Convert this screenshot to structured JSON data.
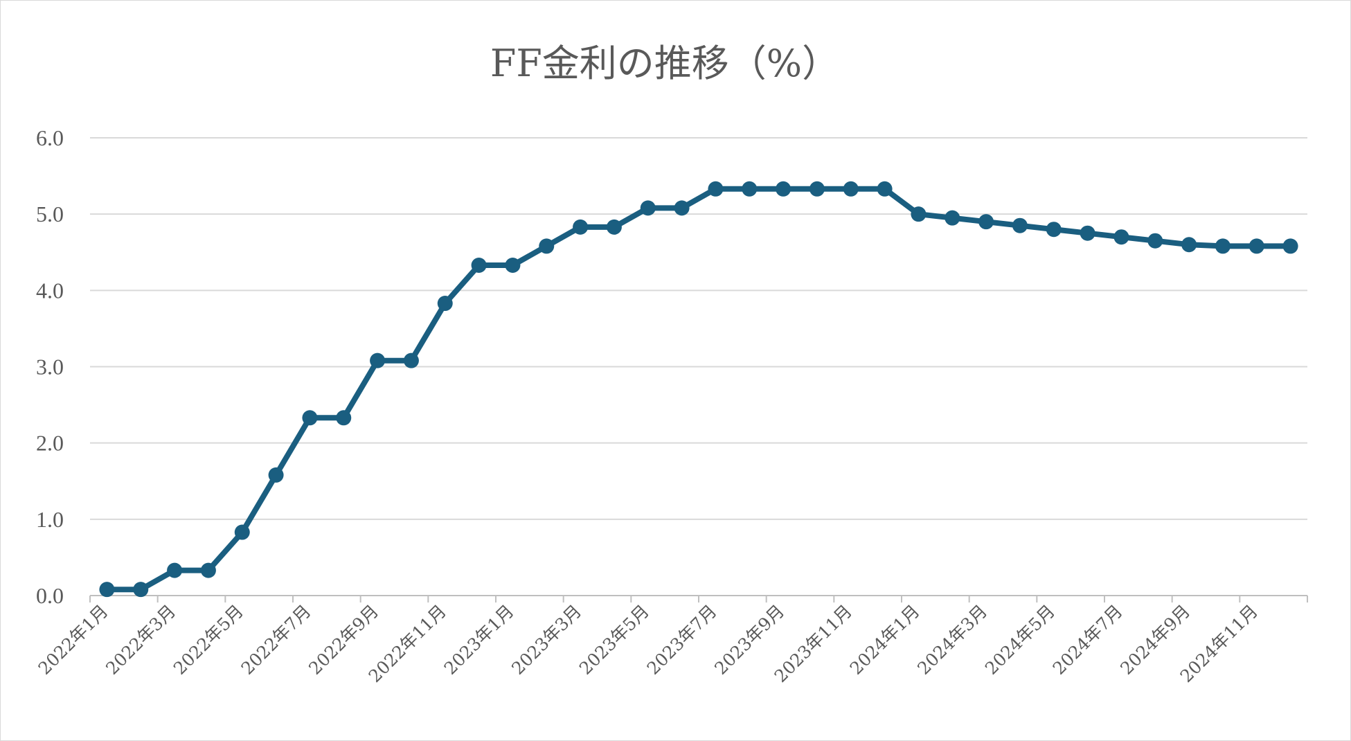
{
  "chart_data": {
    "type": "line",
    "title": "FF金利の推移（%）",
    "xlabel": "",
    "ylabel": "",
    "ylim": [
      0,
      6
    ],
    "yticks": [
      "0.0",
      "1.0",
      "2.0",
      "3.0",
      "4.0",
      "5.0",
      "6.0"
    ],
    "grid": true,
    "legend": "none",
    "color": "#1a5e80",
    "x_labels": [
      "2022年1月",
      "2022年3月",
      "2022年5月",
      "2022年7月",
      "2022年9月",
      "2022年11月",
      "2023年1月",
      "2023年3月",
      "2023年5月",
      "2023年7月",
      "2023年9月",
      "2023年11月",
      "2024年1月",
      "2024年3月",
      "2024年5月",
      "2024年7月",
      "2024年9月",
      "2024年11月"
    ],
    "x": [
      "2022-01",
      "2022-02",
      "2022-03",
      "2022-04",
      "2022-05",
      "2022-06",
      "2022-07",
      "2022-08",
      "2022-09",
      "2022-10",
      "2022-11",
      "2022-12",
      "2023-01",
      "2023-02",
      "2023-03",
      "2023-04",
      "2023-05",
      "2023-06",
      "2023-07",
      "2023-08",
      "2023-09",
      "2023-10",
      "2023-11",
      "2023-12",
      "2024-01",
      "2024-02",
      "2024-03",
      "2024-04",
      "2024-05",
      "2024-06",
      "2024-07",
      "2024-08",
      "2024-09",
      "2024-10",
      "2024-11",
      "2024-12"
    ],
    "values": [
      0.08,
      0.08,
      0.33,
      0.33,
      0.83,
      1.58,
      2.33,
      2.33,
      3.08,
      3.08,
      3.83,
      4.33,
      4.33,
      4.58,
      4.83,
      4.83,
      5.08,
      5.08,
      5.33,
      5.33,
      5.33,
      5.33,
      5.33,
      5.33,
      5.0,
      4.95,
      4.9,
      4.85,
      4.8,
      4.75,
      4.7,
      4.65,
      4.6,
      4.58,
      4.58,
      4.58
    ]
  }
}
